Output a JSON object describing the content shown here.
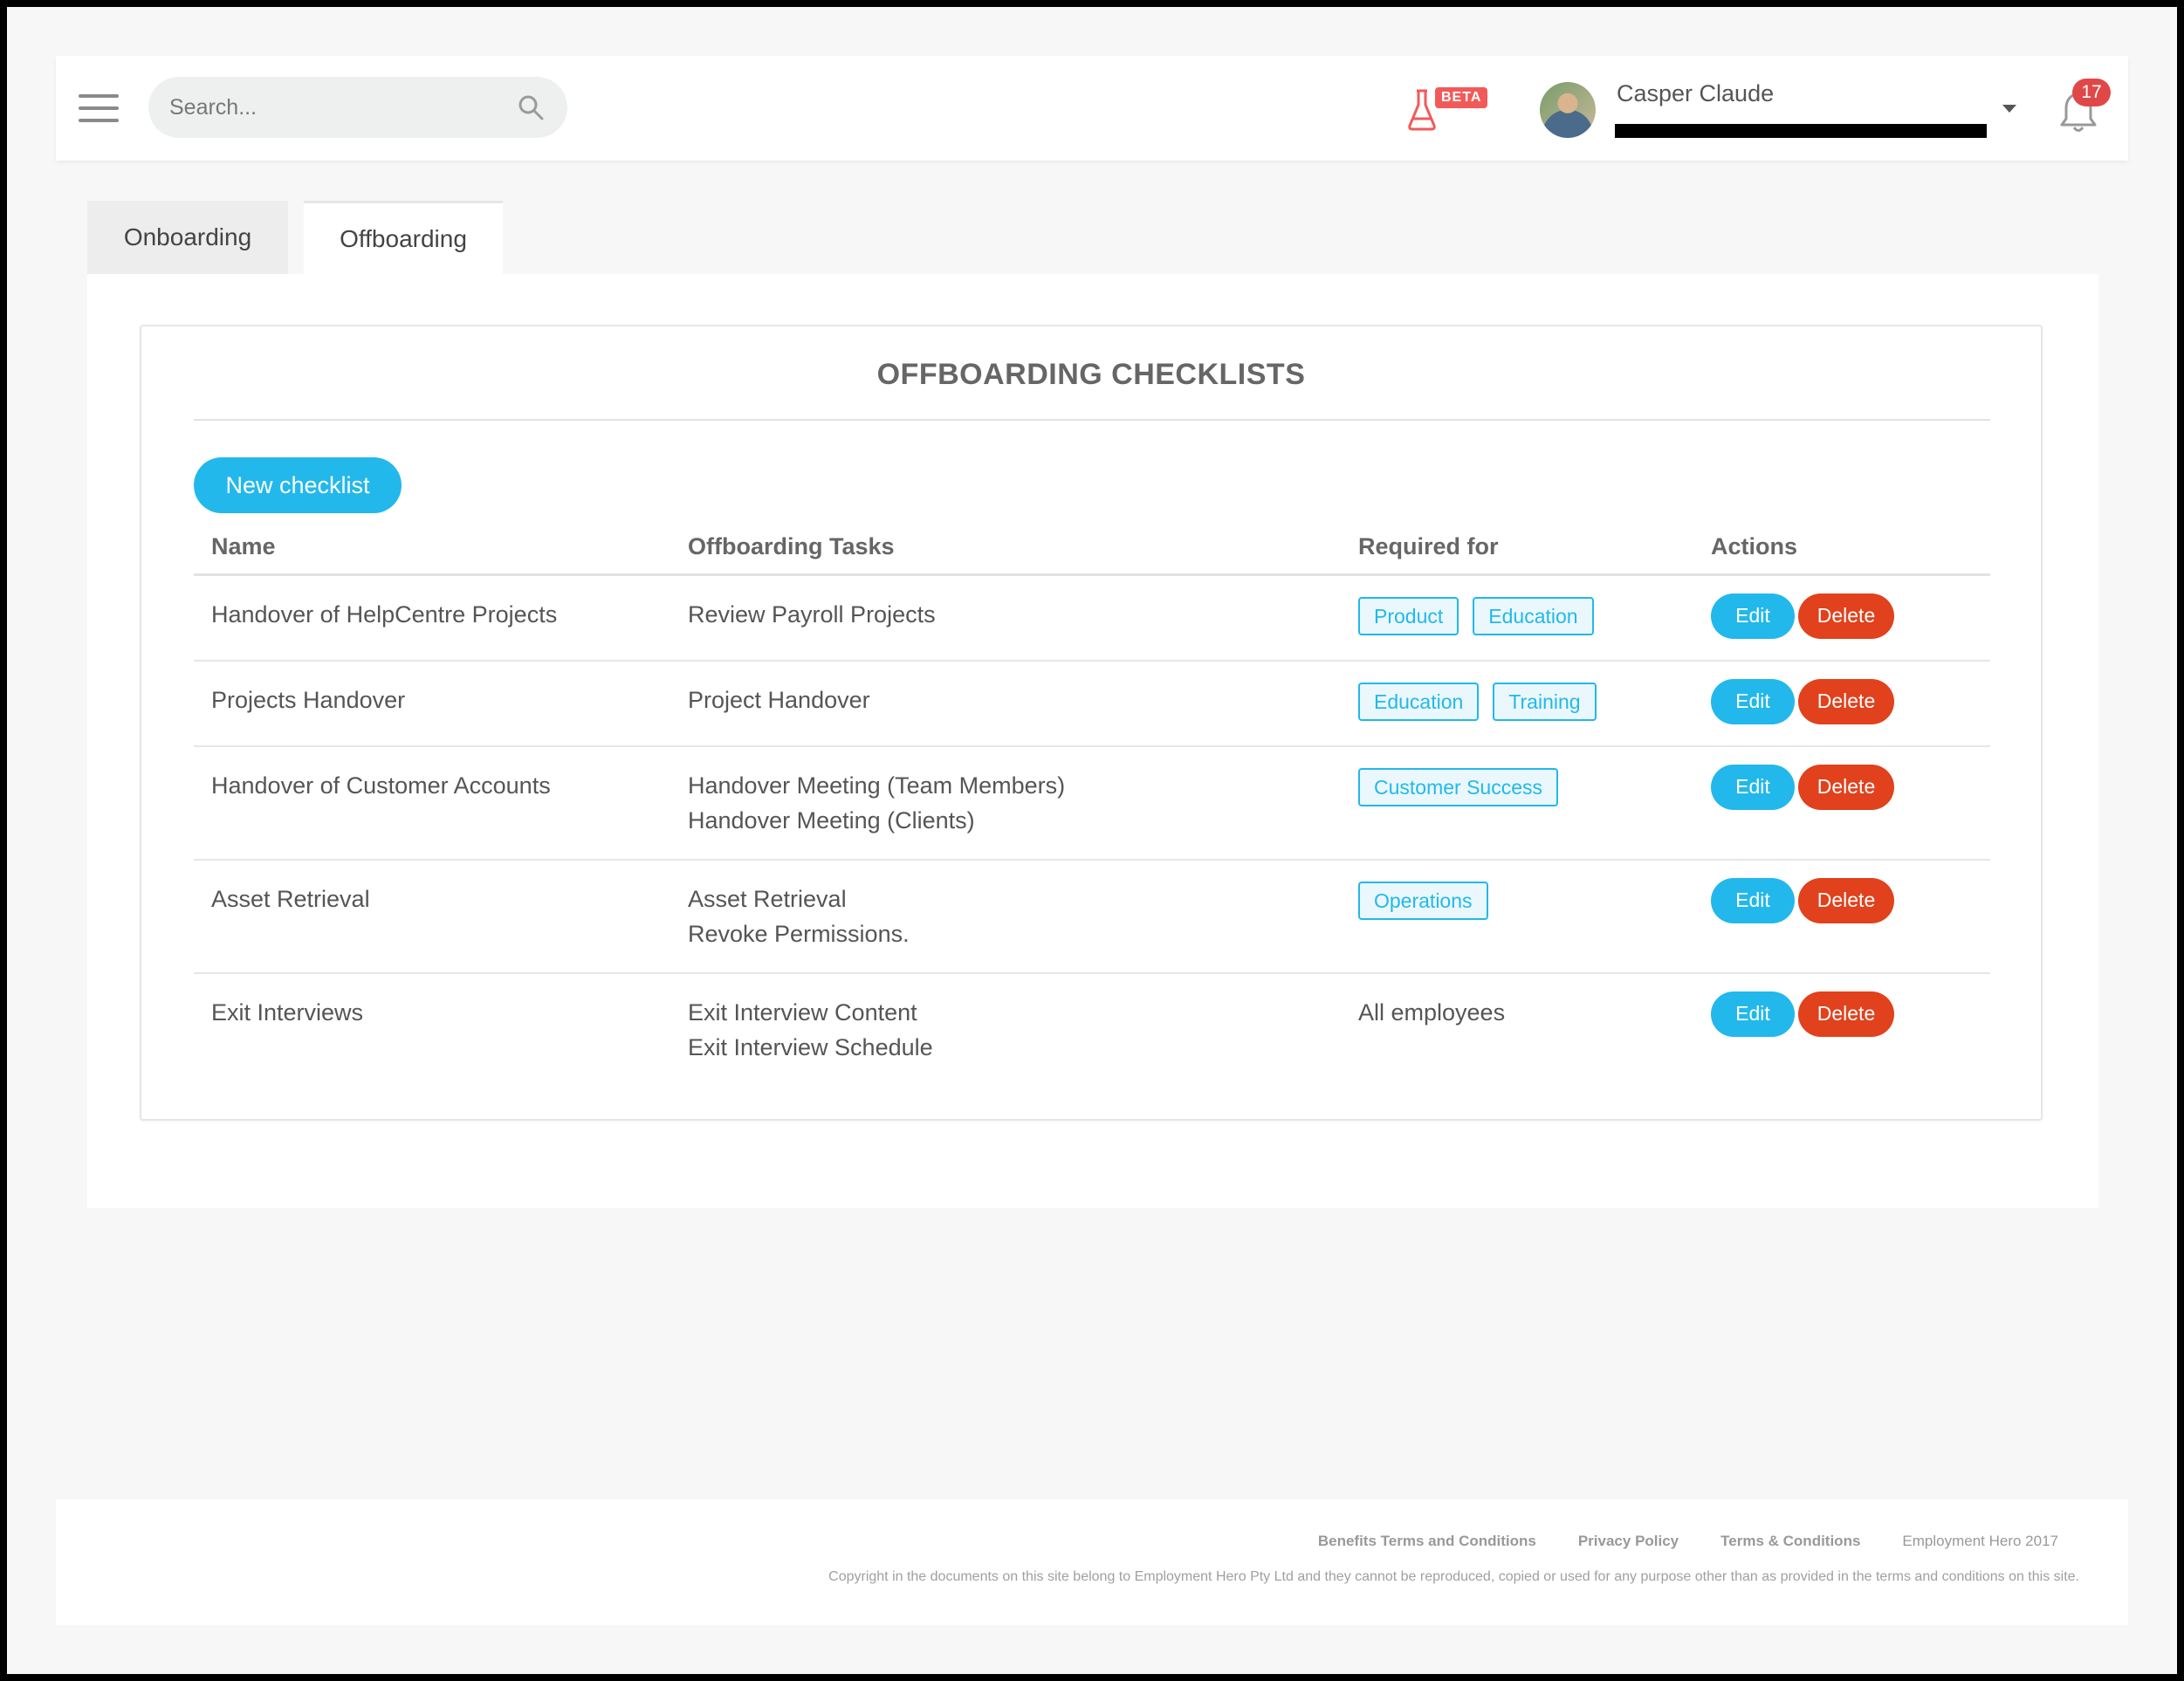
{
  "header": {
    "search_placeholder": "Search...",
    "beta_label": "BETA",
    "user_name": "Casper Claude",
    "notification_count": "17"
  },
  "tabs": [
    {
      "label": "Onboarding",
      "active": false
    },
    {
      "label": "Offboarding",
      "active": true
    }
  ],
  "main": {
    "title": "OFFBOARDING CHECKLISTS",
    "new_button": "New checklist",
    "columns": [
      "Name",
      "Offboarding Tasks",
      "Required for",
      "Actions"
    ],
    "edit_label": "Edit",
    "delete_label": "Delete",
    "rows": [
      {
        "name": "Handover of HelpCentre Projects",
        "tasks": [
          "Review Payroll Projects"
        ],
        "tags": [
          "Product",
          "Education"
        ]
      },
      {
        "name": "Projects Handover",
        "tasks": [
          "Project Handover"
        ],
        "tags": [
          "Education",
          "Training"
        ]
      },
      {
        "name": "Handover of Customer Accounts",
        "tasks": [
          "Handover Meeting (Team Members)",
          "Handover Meeting (Clients)"
        ],
        "tags": [
          "Customer Success"
        ]
      },
      {
        "name": "Asset Retrieval",
        "tasks": [
          "Asset Retrieval",
          "Revoke Permissions."
        ],
        "tags": [
          "Operations"
        ]
      },
      {
        "name": "Exit Interviews",
        "tasks": [
          "Exit Interview Content",
          "Exit Interview Schedule"
        ],
        "tags": [],
        "required_text": "All employees"
      }
    ]
  },
  "footer": {
    "links": [
      "Benefits Terms and Conditions",
      "Privacy Policy",
      "Terms & Conditions"
    ],
    "brand": "Employment Hero 2017",
    "copyright": "Copyright in the documents on this site belong to Employment Hero Pty Ltd and they cannot be reproduced, copied or used for any purpose other than as provided in the terms and conditions on this site."
  },
  "colors": {
    "accent": "#22b8eb",
    "danger": "#e1411c",
    "badge": "#e04848",
    "beta": "#f25a5a"
  },
  "icons": [
    "hamburger-icon",
    "search-icon",
    "flask-icon",
    "chevron-down-icon",
    "bell-icon"
  ]
}
